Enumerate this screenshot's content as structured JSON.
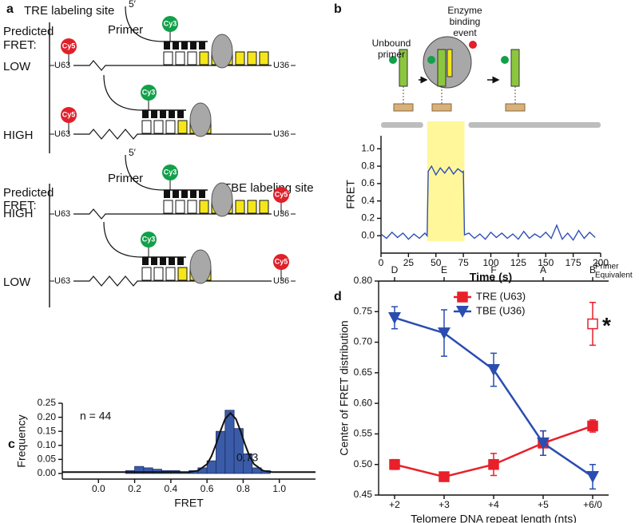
{
  "panel_a": {
    "letter": "a",
    "title_tre": "TRE labeling site",
    "title_tbe": "TBE labeling site",
    "predicted": "Predicted",
    "fret": "FRET:",
    "primer": "Primer",
    "five_prime": "5′",
    "donor": "Cy3",
    "acceptor": "Cy5",
    "site_left": "U63",
    "site_right": "U36",
    "states": [
      "LOW",
      "HIGH",
      "HIGH",
      "LOW"
    ]
  },
  "panel_b": {
    "letter": "b",
    "unbound_lines": [
      "Unbound",
      "primer"
    ],
    "binding_lines": [
      "Enzyme",
      "binding",
      "event"
    ]
  },
  "panel_c": {
    "letter": "c"
  },
  "panel_d": {
    "letter": "d"
  },
  "chart_data": [
    {
      "type": "line",
      "xlabel": "Time (s)",
      "ylabel": "FRET",
      "x": [
        0,
        5,
        10,
        15,
        20,
        25,
        30,
        35,
        40,
        42,
        43,
        46,
        50,
        54,
        58,
        62,
        66,
        70,
        74,
        75,
        76,
        80,
        85,
        90,
        95,
        100,
        105,
        110,
        115,
        120,
        125,
        130,
        135,
        140,
        145,
        150,
        155,
        160,
        165,
        170,
        175,
        180,
        185,
        190,
        195
      ],
      "series": [
        {
          "color": "#2f4fb5",
          "values": [
            0.02,
            -0.03,
            0.04,
            -0.02,
            0.03,
            -0.04,
            0.02,
            -0.03,
            0.03,
            0.0,
            0.74,
            0.8,
            0.7,
            0.78,
            0.72,
            0.79,
            0.71,
            0.77,
            0.73,
            0.74,
            0.01,
            0.03,
            -0.03,
            0.02,
            -0.04,
            0.04,
            -0.02,
            0.03,
            -0.03,
            0.02,
            -0.04,
            0.05,
            -0.03,
            0.02,
            -0.02,
            0.04,
            -0.03,
            0.12,
            -0.04,
            0.03,
            -0.05,
            0.06,
            -0.03,
            0.04,
            -0.02
          ]
        }
      ],
      "highlight": [
        42,
        76
      ],
      "highlight_color": "#fff79a",
      "xlim": [
        0,
        200
      ],
      "ylim": [
        -0.2,
        1.15
      ],
      "xticks": [
        0,
        25,
        50,
        75,
        100,
        125,
        150,
        175,
        200
      ],
      "yticks": [
        {
          "value": 0,
          "label": "0.0"
        },
        0.2,
        0.4,
        0.6,
        0.8,
        {
          "value": 1,
          "label": "1.0"
        }
      ]
    },
    {
      "type": "histogram",
      "xlabel": "FRET",
      "ylabel": "Frequency",
      "bins": [
        0.15,
        0.2,
        0.25,
        0.3,
        0.35,
        0.4,
        0.45,
        0.5,
        0.55,
        0.6,
        0.65,
        0.7,
        0.75,
        0.8,
        0.85,
        0.9,
        0.95
      ],
      "values": [
        0.01,
        0.025,
        0.02,
        0.015,
        0.01,
        0.01,
        0.005,
        0.01,
        0.02,
        0.045,
        0.15,
        0.225,
        0.16,
        0.07,
        0.02,
        0.01
      ],
      "color": "#3a5ba8",
      "fit": {
        "x": [
          -0.2,
          0.3,
          0.45,
          0.5,
          0.55,
          0.6,
          0.625,
          0.65,
          0.675,
          0.7,
          0.73,
          0.76,
          0.785,
          0.81,
          0.835,
          0.86,
          0.91,
          0.96,
          1.0,
          1.2
        ],
        "y": [
          0.005,
          0.005,
          0.005,
          0.005,
          0.01,
          0.033,
          0.062,
          0.104,
          0.152,
          0.194,
          0.215,
          0.194,
          0.152,
          0.104,
          0.062,
          0.033,
          0.01,
          0.005,
          0.005,
          0.005
        ]
      },
      "annotations": [
        "n = 44",
        "0.73"
      ],
      "xlim": [
        -0.2,
        1.2
      ],
      "ylim": [
        -0.02,
        0.25
      ],
      "xticks": [
        {
          "value": 0,
          "label": "0.0"
        },
        0.2,
        0.4,
        0.6,
        0.8,
        {
          "value": 1,
          "label": "1.0"
        }
      ],
      "yticks": [
        {
          "value": 0,
          "label": "0.00"
        },
        0.05,
        {
          "value": 0.1,
          "label": "0.10"
        },
        0.15,
        {
          "value": 0.2,
          "label": "0.20"
        },
        0.25
      ]
    },
    {
      "type": "errorline",
      "xlabel": "Telomere DNA repeat length (nts)",
      "ylabel": "Center of FRET distribution",
      "categories": [
        "+2",
        "+3",
        "+4",
        "+5",
        "+6/0"
      ],
      "top_categories": [
        "D",
        "E",
        "F",
        "A",
        "B"
      ],
      "top_label_lines": [
        "Primer",
        "Equivalent"
      ],
      "series": [
        {
          "name": "TRE (U63)",
          "color": "#e8202a",
          "marker": "square",
          "values": [
            0.5,
            0.48,
            0.5,
            0.535,
            0.563
          ],
          "errors": [
            0.008,
            0.005,
            0.018,
            0.02,
            0.01
          ],
          "open_values": [
            null,
            null,
            null,
            null,
            0.73
          ],
          "open_errors": [
            null,
            null,
            null,
            null,
            0.035
          ],
          "open_note": "*"
        },
        {
          "name": "TBE (U36)",
          "color": "#2a4db0",
          "marker": "triangle-down",
          "values": [
            0.74,
            0.715,
            0.655,
            0.535,
            0.48
          ],
          "errors": [
            0.018,
            0.038,
            0.027,
            0.02,
            0.02
          ]
        }
      ],
      "ylim": [
        0.45,
        0.8
      ],
      "yticks": [
        0.45,
        {
          "value": 0.5,
          "label": "0.50"
        },
        0.55,
        {
          "value": 0.6,
          "label": "0.60"
        },
        0.65,
        {
          "value": 0.7,
          "label": "0.70"
        },
        0.75,
        {
          "value": 0.8,
          "label": "0.80"
        }
      ]
    }
  ]
}
